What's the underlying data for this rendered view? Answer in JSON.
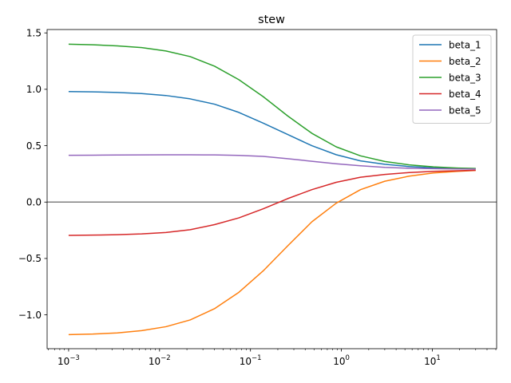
{
  "chart_data": {
    "type": "line",
    "title": "stew",
    "xlabel": "",
    "ylabel": "",
    "xscale": "log",
    "xlim": [
      0.00058,
      51
    ],
    "ylim": [
      -1.3,
      1.53
    ],
    "grid": false,
    "legend_position": "top-right",
    "x_ticks": [
      {
        "value": 0.001,
        "mantissa": "10",
        "exp": "−3"
      },
      {
        "value": 0.01,
        "mantissa": "10",
        "exp": "−2"
      },
      {
        "value": 0.1,
        "mantissa": "10",
        "exp": "−1"
      },
      {
        "value": 1,
        "mantissa": "10",
        "exp": "0"
      },
      {
        "value": 10,
        "mantissa": "10",
        "exp": "1"
      }
    ],
    "y_ticks": [
      {
        "value": 1.5,
        "label": "1.5"
      },
      {
        "value": 1.0,
        "label": "1.0"
      },
      {
        "value": 0.5,
        "label": "0.5"
      },
      {
        "value": 0.0,
        "label": "0.0"
      },
      {
        "value": -0.5,
        "label": "−0.5"
      },
      {
        "value": -1.0,
        "label": "−1.0"
      }
    ],
    "reference_line": {
      "y": 0,
      "color": "#808080"
    },
    "x": [
      0.001,
      0.00185,
      0.00343,
      0.00635,
      0.01175,
      0.02175,
      0.04027,
      0.07456,
      0.13804,
      0.25557,
      0.47315,
      0.87597,
      1.6218,
      3.0025,
      5.5589,
      10.292,
      19.054,
      30
    ],
    "series": [
      {
        "name": "beta_1",
        "color": "#1f77b4",
        "values": [
          0.98,
          0.977,
          0.972,
          0.962,
          0.945,
          0.915,
          0.868,
          0.795,
          0.7,
          0.6,
          0.5,
          0.42,
          0.365,
          0.335,
          0.315,
          0.303,
          0.297,
          0.295
        ]
      },
      {
        "name": "beta_2",
        "color": "#ff7f0e",
        "values": [
          -1.175,
          -1.17,
          -1.16,
          -1.14,
          -1.105,
          -1.045,
          -0.945,
          -0.8,
          -0.61,
          -0.39,
          -0.175,
          -0.01,
          0.11,
          0.185,
          0.23,
          0.258,
          0.272,
          0.28
        ]
      },
      {
        "name": "beta_3",
        "color": "#2ca02c",
        "values": [
          1.4,
          1.395,
          1.385,
          1.37,
          1.34,
          1.29,
          1.205,
          1.085,
          0.935,
          0.765,
          0.61,
          0.49,
          0.41,
          0.36,
          0.33,
          0.312,
          0.302,
          0.298
        ]
      },
      {
        "name": "beta_4",
        "color": "#d62728",
        "values": [
          -0.295,
          -0.293,
          -0.289,
          -0.282,
          -0.27,
          -0.245,
          -0.2,
          -0.14,
          -0.06,
          0.03,
          0.11,
          0.175,
          0.22,
          0.245,
          0.262,
          0.272,
          0.278,
          0.282
        ]
      },
      {
        "name": "beta_5",
        "color": "#9467bd",
        "values": [
          0.415,
          0.416,
          0.417,
          0.418,
          0.419,
          0.419,
          0.418,
          0.414,
          0.405,
          0.385,
          0.362,
          0.34,
          0.322,
          0.308,
          0.3,
          0.296,
          0.294,
          0.293
        ]
      }
    ]
  }
}
